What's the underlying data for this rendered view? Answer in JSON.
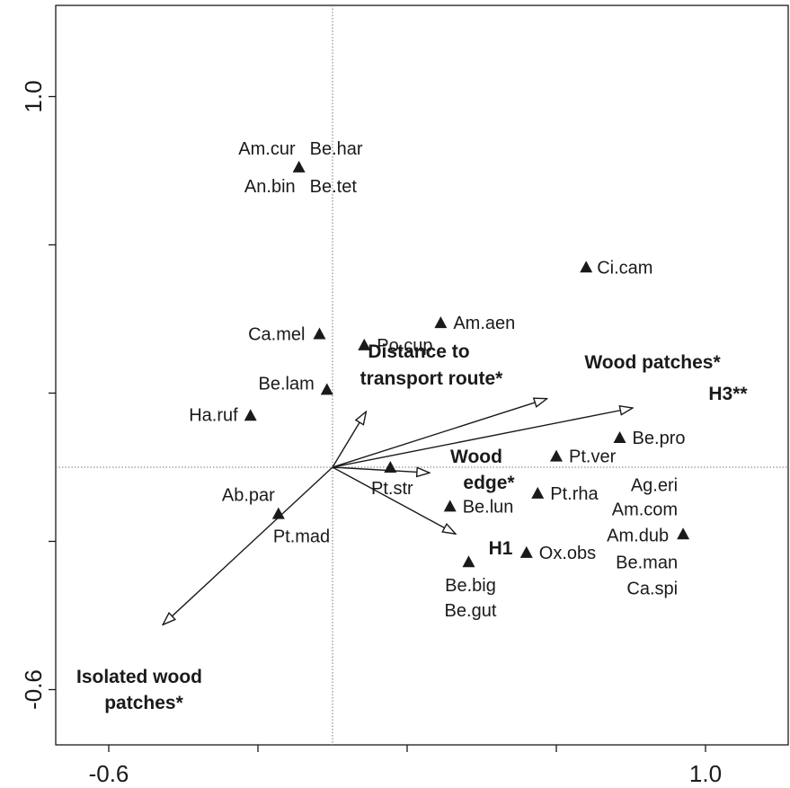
{
  "chart_data": {
    "type": "scatter",
    "title": "",
    "xlabel": "",
    "ylabel": "",
    "xlim": [
      -0.6,
      1.0
    ],
    "ylim": [
      -0.6,
      1.0
    ],
    "x_tick_labels": [
      "-0.6",
      "1.0"
    ],
    "y_tick_labels": [
      "1.0",
      "-0.6"
    ],
    "zero_lines": "dotted",
    "species": [
      {
        "x": -0.09,
        "y": 0.81,
        "labels": [
          "Am.cur",
          "Be.har",
          "An.bin",
          "Be.tet"
        ]
      },
      {
        "x": 0.68,
        "y": 0.54,
        "labels": [
          "Ci.cam"
        ]
      },
      {
        "x": 0.29,
        "y": 0.39,
        "labels": [
          "Am.aen"
        ]
      },
      {
        "x": -0.035,
        "y": 0.36,
        "labels": [
          "Ca.mel"
        ]
      },
      {
        "x": 0.085,
        "y": 0.33,
        "labels": [
          "Po.cup"
        ]
      },
      {
        "x": -0.015,
        "y": 0.21,
        "labels": [
          "Be.lam"
        ]
      },
      {
        "x": -0.22,
        "y": 0.14,
        "labels": [
          "Ha.ruf"
        ]
      },
      {
        "x": 0.77,
        "y": 0.08,
        "labels": [
          "Be.pro"
        ]
      },
      {
        "x": 0.6,
        "y": 0.03,
        "labels": [
          "Pt.ver"
        ]
      },
      {
        "x": 0.155,
        "y": 0.0,
        "labels": [
          "Pt.str"
        ]
      },
      {
        "x": 0.55,
        "y": -0.07,
        "labels": [
          "Pt.rha"
        ]
      },
      {
        "x": 0.315,
        "y": -0.105,
        "labels": [
          "Be.lun"
        ]
      },
      {
        "x": -0.145,
        "y": -0.125,
        "labels": [
          "Ab.par",
          "Pt.mad"
        ]
      },
      {
        "x": 0.94,
        "y": -0.18,
        "labels": [
          "Ag.eri",
          "Am.com",
          "Am.dub",
          "Be.man",
          "Ca.spi"
        ]
      },
      {
        "x": 0.52,
        "y": -0.23,
        "labels": [
          "Ox.obs"
        ]
      },
      {
        "x": 0.365,
        "y": -0.255,
        "labels": [
          "Be.big",
          "Be.gut"
        ]
      }
    ],
    "arrows": [
      {
        "name": "Distance to transport route*",
        "x": 0.09,
        "y": 0.15
      },
      {
        "name": "Wood patches*",
        "x": 0.575,
        "y": 0.185
      },
      {
        "name": "H3**",
        "x": 0.805,
        "y": 0.16
      },
      {
        "name": "Wood edge*",
        "x": 0.26,
        "y": -0.015
      },
      {
        "name": "H1",
        "x": 0.33,
        "y": -0.18
      },
      {
        "name": "Isolated wood patches*",
        "x": -0.455,
        "y": -0.425
      }
    ]
  }
}
